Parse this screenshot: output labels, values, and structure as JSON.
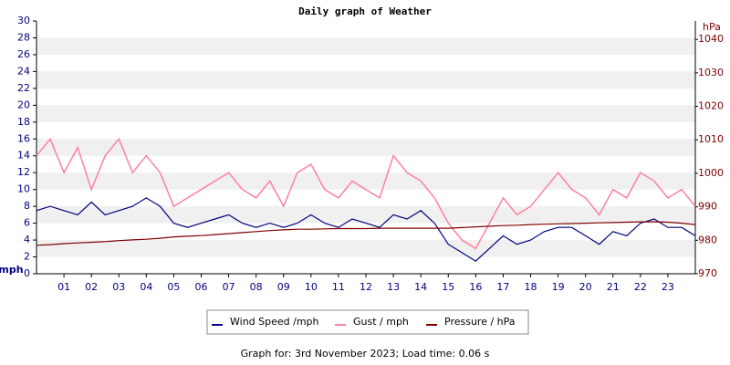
{
  "chart_data": {
    "type": "line",
    "title": "Daily graph of Weather",
    "ylabel": "mph",
    "y2label": "hPa",
    "caption": "Graph for: 3rd November 2023; Load time: 0.06 s",
    "x": [
      0,
      0.5,
      1,
      1.5,
      2,
      2.5,
      3,
      3.5,
      4,
      4.5,
      5,
      5.5,
      6,
      6.5,
      7,
      7.5,
      8,
      8.5,
      9,
      9.5,
      10,
      10.5,
      11,
      11.5,
      12,
      12.5,
      13,
      13.5,
      14,
      14.5,
      15,
      15.5,
      16,
      16.5,
      17,
      17.5,
      18,
      18.5,
      19,
      19.5,
      20,
      20.5,
      21,
      21.5,
      22,
      22.5,
      23,
      23.5,
      24
    ],
    "xlim": [
      0,
      24
    ],
    "xticks": [
      {
        "value": 1,
        "label": "01"
      },
      {
        "value": 2,
        "label": "02"
      },
      {
        "value": 3,
        "label": "03"
      },
      {
        "value": 4,
        "label": "04"
      },
      {
        "value": 5,
        "label": "05"
      },
      {
        "value": 6,
        "label": "06"
      },
      {
        "value": 7,
        "label": "07"
      },
      {
        "value": 8,
        "label": "08"
      },
      {
        "value": 9,
        "label": "09"
      },
      {
        "value": 10,
        "label": "10"
      },
      {
        "value": 11,
        "label": "11"
      },
      {
        "value": 12,
        "label": "12"
      },
      {
        "value": 13,
        "label": "13"
      },
      {
        "value": 14,
        "label": "14"
      },
      {
        "value": 15,
        "label": "15"
      },
      {
        "value": 16,
        "label": "16"
      },
      {
        "value": 17,
        "label": "17"
      },
      {
        "value": 18,
        "label": "18"
      },
      {
        "value": 19,
        "label": "19"
      },
      {
        "value": 20,
        "label": "20"
      },
      {
        "value": 21,
        "label": "21"
      },
      {
        "value": 22,
        "label": "22"
      },
      {
        "value": 23,
        "label": "23"
      }
    ],
    "ylim": [
      0,
      30
    ],
    "yticks": [
      0,
      2,
      4,
      6,
      8,
      10,
      12,
      14,
      16,
      18,
      20,
      22,
      24,
      26,
      28,
      30
    ],
    "y2lim": [
      970,
      1045.5
    ],
    "y2ticks": [
      970,
      980,
      990,
      1000,
      1010,
      1020,
      1030,
      1040
    ],
    "grid": true,
    "series": [
      {
        "name": "Wind Speed /mph",
        "color": "#000080",
        "values": [
          7.5,
          8,
          7.5,
          7,
          8.5,
          7,
          7.5,
          8,
          9,
          8,
          6,
          5.5,
          6,
          6.5,
          7,
          6,
          5.5,
          6,
          5.5,
          6,
          7,
          6,
          5.5,
          6.5,
          6,
          5.5,
          7,
          6.5,
          7.5,
          6,
          3.5,
          2.5,
          1.5,
          3,
          4.5,
          3.5,
          4,
          5,
          5.5,
          5.5,
          4.5,
          3.5,
          5,
          4.5,
          6,
          6.5,
          5.5,
          5.5,
          4.5
        ]
      },
      {
        "name": "Gust / mph",
        "color": "#ff80a0",
        "values": [
          14,
          16,
          12,
          15,
          10,
          14,
          16,
          12,
          14,
          12,
          8,
          9,
          10,
          11,
          12,
          10,
          9,
          11,
          8,
          12,
          13,
          10,
          9,
          11,
          10,
          9,
          14,
          12,
          11,
          9,
          6,
          4,
          3,
          6,
          9,
          7,
          8,
          10,
          12,
          10,
          9,
          7,
          10,
          9,
          12,
          11,
          9,
          10,
          8
        ]
      },
      {
        "name": "Pressure / hPa",
        "color": "#800000",
        "axis": "y2",
        "values": [
          978.5,
          978.7,
          979,
          979.2,
          979.4,
          979.6,
          979.9,
          980.1,
          980.3,
          980.6,
          981,
          981.2,
          981.4,
          981.7,
          982,
          982.3,
          982.6,
          982.9,
          983.1,
          983.3,
          983.3,
          983.4,
          983.5,
          983.5,
          983.5,
          983.6,
          983.6,
          983.6,
          983.6,
          983.6,
          983.6,
          983.8,
          984,
          984.2,
          984.4,
          984.5,
          984.7,
          984.8,
          984.9,
          985,
          985.1,
          985.2,
          985.3,
          985.4,
          985.5,
          985.5,
          985.4,
          985.1,
          984.7
        ]
      }
    ]
  }
}
